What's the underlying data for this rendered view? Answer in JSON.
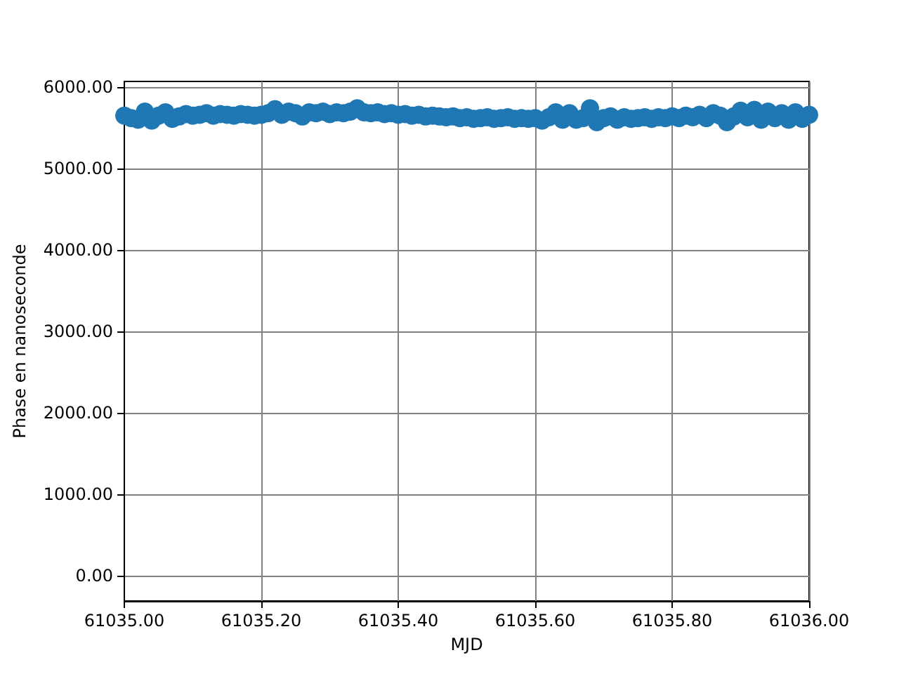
{
  "chart_data": {
    "type": "scatter",
    "xlabel": "MJD",
    "ylabel": "Phase en nanoseconde",
    "x": [
      61035.0,
      61035.01,
      61035.02,
      61035.03,
      61035.04,
      61035.05,
      61035.06,
      61035.07,
      61035.08,
      61035.09,
      61035.1,
      61035.11,
      61035.12,
      61035.13,
      61035.14,
      61035.15,
      61035.16,
      61035.17,
      61035.18,
      61035.19,
      61035.2,
      61035.21,
      61035.22,
      61035.23,
      61035.24,
      61035.25,
      61035.26,
      61035.27,
      61035.28,
      61035.29,
      61035.3,
      61035.31,
      61035.32,
      61035.33,
      61035.34,
      61035.35,
      61035.36,
      61035.37,
      61035.38,
      61035.39,
      61035.4,
      61035.41,
      61035.42,
      61035.43,
      61035.44,
      61035.45,
      61035.46,
      61035.47,
      61035.48,
      61035.49,
      61035.5,
      61035.51,
      61035.52,
      61035.53,
      61035.54,
      61035.55,
      61035.56,
      61035.57,
      61035.58,
      61035.59,
      61035.6,
      61035.61,
      61035.62,
      61035.63,
      61035.64,
      61035.65,
      61035.66,
      61035.67,
      61035.68,
      61035.69,
      61035.7,
      61035.71,
      61035.72,
      61035.73,
      61035.74,
      61035.75,
      61035.76,
      61035.77,
      61035.78,
      61035.79,
      61035.8,
      61035.81,
      61035.82,
      61035.83,
      61035.84,
      61035.85,
      61035.86,
      61035.87,
      61035.88,
      61035.89,
      61035.9,
      61035.91,
      61035.92,
      61035.93,
      61035.94,
      61035.95,
      61035.96,
      61035.97,
      61035.98,
      61035.99,
      61036.0
    ],
    "series": [
      {
        "color": "#1f77b4",
        "values": [
          5650,
          5620,
          5600,
          5700,
          5590,
          5650,
          5690,
          5610,
          5640,
          5670,
          5650,
          5660,
          5680,
          5650,
          5670,
          5660,
          5650,
          5670,
          5660,
          5650,
          5660,
          5680,
          5730,
          5660,
          5700,
          5680,
          5640,
          5690,
          5680,
          5700,
          5670,
          5690,
          5680,
          5700,
          5740,
          5690,
          5680,
          5690,
          5670,
          5680,
          5660,
          5670,
          5650,
          5660,
          5640,
          5650,
          5640,
          5630,
          5640,
          5620,
          5630,
          5610,
          5620,
          5630,
          5610,
          5620,
          5630,
          5610,
          5620,
          5610,
          5620,
          5590,
          5630,
          5690,
          5600,
          5680,
          5600,
          5620,
          5740,
          5570,
          5620,
          5640,
          5600,
          5630,
          5610,
          5620,
          5630,
          5610,
          5630,
          5620,
          5640,
          5620,
          5650,
          5630,
          5660,
          5620,
          5680,
          5650,
          5570,
          5640,
          5710,
          5630,
          5720,
          5600,
          5700,
          5620,
          5680,
          5600,
          5690,
          5610,
          5660
        ]
      }
    ],
    "xlim": [
      61035,
      61036
    ],
    "xticks": [
      {
        "value": 61035,
        "label": "61035.00"
      },
      {
        "value": 61035.2,
        "label": "61035.20"
      },
      {
        "value": 61035.4,
        "label": "61035.40"
      },
      {
        "value": 61035.6,
        "label": "61035.60"
      },
      {
        "value": 61035.8,
        "label": "61035.80"
      },
      {
        "value": 61036,
        "label": "61036.00"
      }
    ],
    "ylim": [
      -310,
      6070
    ],
    "yticks": [
      {
        "value": 0,
        "label": "0.00"
      },
      {
        "value": 1000,
        "label": "1000.00"
      },
      {
        "value": 2000,
        "label": "2000.00"
      },
      {
        "value": 3000,
        "label": "3000.00"
      },
      {
        "value": 4000,
        "label": "4000.00"
      },
      {
        "value": 5000,
        "label": "5000.00"
      },
      {
        "value": 6000,
        "label": "6000.00"
      }
    ],
    "grid": true,
    "marker": "circle"
  }
}
